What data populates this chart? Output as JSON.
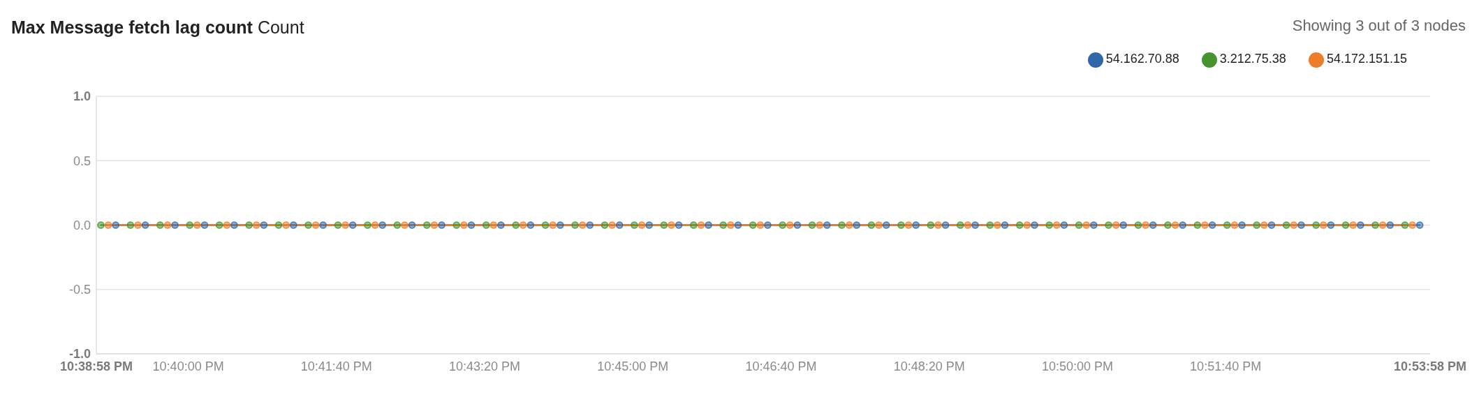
{
  "chart_data": {
    "type": "line",
    "title": "Max Message fetch lag count",
    "subtitle": "Count",
    "annotations": [
      "Showing 3 out of 3 nodes"
    ],
    "xlim": [
      22.64944,
      22.89944
    ],
    "xticks": [
      {
        "value": 22.64944,
        "label": "10:38:58 PM"
      },
      {
        "value": 22.66667,
        "label": "10:40:00 PM"
      },
      {
        "value": 22.69444,
        "label": "10:41:40 PM"
      },
      {
        "value": 22.72222,
        "label": "10:43:20 PM"
      },
      {
        "value": 22.75,
        "label": "10:45:00 PM"
      },
      {
        "value": 22.77778,
        "label": "10:46:40 PM"
      },
      {
        "value": 22.80556,
        "label": "10:48:20 PM"
      },
      {
        "value": 22.83333,
        "label": "10:50:00 PM"
      },
      {
        "value": 22.86111,
        "label": "10:51:40 PM"
      },
      {
        "value": 22.89944,
        "label": "10:53:58 PM"
      }
    ],
    "ylim": [
      -1,
      1
    ],
    "yticks": [
      {
        "value": -1,
        "label": "-1.0"
      },
      -0.5,
      {
        "value": 0,
        "label": "0.0"
      },
      0.5,
      {
        "value": 1,
        "label": "1.0"
      }
    ],
    "grid": "y",
    "legend": "top right",
    "marker": "circle",
    "line_style": "solid",
    "series": [
      {
        "name": "54.162.70.88",
        "color": "#3067a8",
        "x": [
          22.65306,
          22.65861,
          22.66417,
          22.66972,
          22.67528,
          22.68083,
          22.68639,
          22.69194,
          22.6975,
          22.70306,
          22.70861,
          22.71417,
          22.71972,
          22.72528,
          22.73083,
          22.73639,
          22.74194,
          22.7475,
          22.75306,
          22.75861,
          22.76417,
          22.76972,
          22.77528,
          22.78083,
          22.78639,
          22.79194,
          22.7975,
          22.80306,
          22.80861,
          22.81417,
          22.81972,
          22.82528,
          22.83083,
          22.83639,
          22.84194,
          22.8475,
          22.85306,
          22.85861,
          22.86417,
          22.86972,
          22.87528,
          22.88083,
          22.88639,
          22.89194,
          22.8975
        ],
        "values": [
          0,
          0,
          0,
          0,
          0,
          0,
          0,
          0,
          0,
          0,
          0,
          0,
          0,
          0,
          0,
          0,
          0,
          0,
          0,
          0,
          0,
          0,
          0,
          0,
          0,
          0,
          0,
          0,
          0,
          0,
          0,
          0,
          0,
          0,
          0,
          0,
          0,
          0,
          0,
          0,
          0,
          0,
          0,
          0,
          0
        ]
      },
      {
        "name": "3.212.75.38",
        "color": "#46932f",
        "x": [
          22.65028,
          22.65583,
          22.66139,
          22.66694,
          22.6725,
          22.67806,
          22.68361,
          22.68917,
          22.69472,
          22.70028,
          22.70583,
          22.71139,
          22.71694,
          22.7225,
          22.72806,
          22.73361,
          22.73917,
          22.74472,
          22.75028,
          22.75583,
          22.76139,
          22.76694,
          22.7725,
          22.77806,
          22.78361,
          22.78917,
          22.79472,
          22.80028,
          22.80583,
          22.81139,
          22.81694,
          22.8225,
          22.82806,
          22.83361,
          22.83917,
          22.84472,
          22.85028,
          22.85583,
          22.86139,
          22.86694,
          22.8725,
          22.87806,
          22.88361,
          22.88917,
          22.89472
        ],
        "values": [
          0,
          0,
          0,
          0,
          0,
          0,
          0,
          0,
          0,
          0,
          0,
          0,
          0,
          0,
          0,
          0,
          0,
          0,
          0,
          0,
          0,
          0,
          0,
          0,
          0,
          0,
          0,
          0,
          0,
          0,
          0,
          0,
          0,
          0,
          0,
          0,
          0,
          0,
          0,
          0,
          0,
          0,
          0,
          0,
          0
        ]
      },
      {
        "name": "54.172.151.15",
        "color": "#eb7d2b",
        "x": [
          22.65167,
          22.65722,
          22.66278,
          22.66833,
          22.67389,
          22.67944,
          22.685,
          22.69056,
          22.69611,
          22.70167,
          22.70722,
          22.71278,
          22.71833,
          22.72389,
          22.72944,
          22.735,
          22.74056,
          22.74611,
          22.75167,
          22.75722,
          22.76278,
          22.76833,
          22.77389,
          22.77944,
          22.785,
          22.79056,
          22.79611,
          22.80167,
          22.80722,
          22.81278,
          22.81833,
          22.82389,
          22.82944,
          22.835,
          22.84056,
          22.84611,
          22.85167,
          22.85722,
          22.86278,
          22.86833,
          22.87389,
          22.87944,
          22.885,
          22.89056,
          22.89611
        ],
        "values": [
          0,
          0,
          0,
          0,
          0,
          0,
          0,
          0,
          0,
          0,
          0,
          0,
          0,
          0,
          0,
          0,
          0,
          0,
          0,
          0,
          0,
          0,
          0,
          0,
          0,
          0,
          0,
          0,
          0,
          0,
          0,
          0,
          0,
          0,
          0,
          0,
          0,
          0,
          0,
          0,
          0,
          0,
          0,
          0,
          0
        ]
      }
    ]
  }
}
